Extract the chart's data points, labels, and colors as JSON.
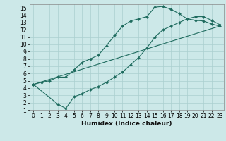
{
  "xlabel": "Humidex (Indice chaleur)",
  "xlim": [
    -0.5,
    23.5
  ],
  "ylim": [
    1,
    15.5
  ],
  "xticks": [
    0,
    1,
    2,
    3,
    4,
    5,
    6,
    7,
    8,
    9,
    10,
    11,
    12,
    13,
    14,
    15,
    16,
    17,
    18,
    19,
    20,
    21,
    22,
    23
  ],
  "yticks": [
    1,
    2,
    3,
    4,
    5,
    6,
    7,
    8,
    9,
    10,
    11,
    12,
    13,
    14,
    15
  ],
  "bg_color": "#cce8e8",
  "grid_color": "#aacfcf",
  "line_color": "#1e6b5e",
  "line1_x": [
    0,
    1,
    2,
    3,
    4,
    5,
    6,
    7,
    8,
    9,
    10,
    11,
    12,
    13,
    14,
    15,
    16,
    17,
    18,
    19,
    20,
    21,
    22,
    23
  ],
  "line1_y": [
    4.5,
    4.8,
    5.0,
    5.5,
    5.5,
    6.5,
    7.5,
    8.0,
    8.5,
    9.8,
    11.2,
    12.5,
    13.2,
    13.5,
    13.8,
    15.1,
    15.2,
    14.8,
    14.2,
    13.5,
    13.3,
    13.2,
    12.8,
    12.5
  ],
  "line2_x": [
    0,
    3,
    4,
    5,
    6,
    7,
    8,
    9,
    10,
    11,
    12,
    13,
    14,
    15,
    16,
    17,
    18,
    19,
    20,
    21,
    22,
    23
  ],
  "line2_y": [
    4.5,
    1.8,
    1.2,
    2.8,
    3.2,
    3.8,
    4.2,
    4.8,
    5.5,
    6.2,
    7.2,
    8.2,
    9.5,
    11.0,
    12.0,
    12.5,
    13.0,
    13.5,
    13.8,
    13.8,
    13.3,
    12.7
  ],
  "line3_x": [
    0,
    23
  ],
  "line3_y": [
    4.5,
    12.5
  ],
  "marker_size": 2.0,
  "line_width": 0.8,
  "tick_fontsize": 5.5,
  "xlabel_fontsize": 6.5
}
